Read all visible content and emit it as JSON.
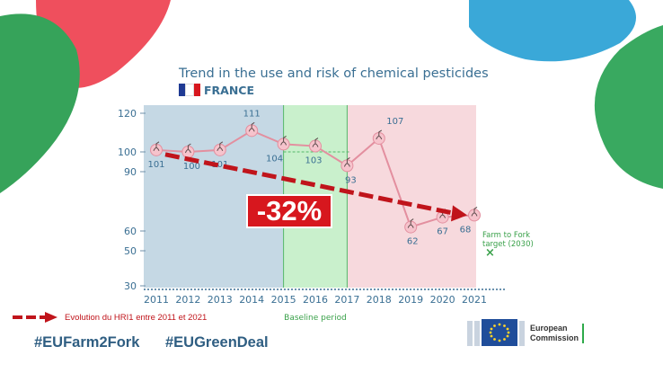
{
  "header": {
    "title": "Trend in the use and risk of chemical pesticides",
    "country": "FRANCE",
    "flag_colors": [
      "#1f3a93",
      "#ffffff",
      "#d7171e"
    ]
  },
  "chart_data": {
    "type": "line",
    "title": "Trend in the use and risk of chemical pesticides",
    "x": [
      "2011",
      "2012",
      "2013",
      "2014",
      "2015",
      "2016",
      "2017",
      "2018",
      "2019",
      "2020",
      "2021"
    ],
    "series": [
      {
        "values": [
          101,
          100,
          101,
          111,
          104,
          103,
          93,
          107,
          62,
          67,
          68
        ],
        "color": "#e38f9f"
      }
    ],
    "y_ticks": [
      30,
      50,
      60,
      90,
      100,
      120
    ],
    "ylim": [
      30,
      120
    ],
    "periods": [
      {
        "from": "2011",
        "to": "2015",
        "color": "#c5d8e4",
        "label": ""
      },
      {
        "from": "2015",
        "to": "2017",
        "color": "#c9f0cc",
        "label": "Baseline period"
      },
      {
        "from": "2017",
        "to": "2021",
        "color": "#f7d9dd",
        "label": ""
      }
    ],
    "baseline_value": 100,
    "target": {
      "label_line1": "Farm to Fork",
      "label_line2": "target (2030)",
      "marker": "×"
    },
    "trend": {
      "from": "2011",
      "to": "2021",
      "change_label": "-32%",
      "color": "#c0141b"
    }
  },
  "legend": {
    "label": "Evolution du HRI1 entre 2011 et 2021"
  },
  "hashtags": [
    "#EUFarm2Fork",
    "#EUGreenDeal"
  ],
  "logo": {
    "line1": "European",
    "line2": "Commission"
  },
  "colors": {
    "accent_red": "#c0141b",
    "title_blue": "#3a6f93",
    "hashtag_blue": "#2f5e82",
    "target_green": "#3aa14a"
  }
}
